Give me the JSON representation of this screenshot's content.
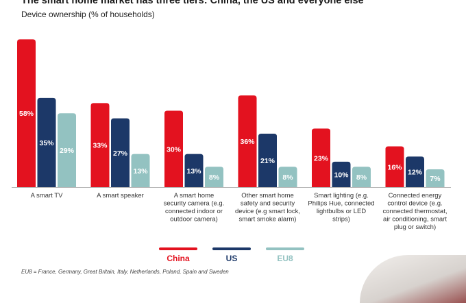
{
  "colors": {
    "China": "#e3121f",
    "US": "#1c3868",
    "EU8": "#93c2c1",
    "baseline": "#b8b8b8",
    "label": "#ffffff",
    "category_text": "#333333"
  },
  "chart_data": {
    "type": "bar",
    "title": "The smart home market has three tiers: China, the US and everyone else",
    "subtitle": "Device ownership (% of households)",
    "categories": [
      "A smart TV",
      "A smart speaker",
      "A smart home security camera (e.g. connected indoor or outdoor camera)",
      "Other smart home safety and security device (e.g smart lock, smart smoke alarm)",
      "Smart lighting (e.g. Philips Hue, connected lightbulbs or LED strips)",
      "Connected energy control device (e.g. connected thermostat, air conditioning, smart plug or switch)"
    ],
    "category_lines": [
      [
        "A smart TV"
      ],
      [
        "A smart speaker"
      ],
      [
        "A smart home",
        "security camera (e.g.",
        "connected indoor or",
        "outdoor camera)"
      ],
      [
        "Other smart home",
        "safety and security",
        "device (e.g smart lock,",
        "smart smoke alarm)"
      ],
      [
        "Smart lighting (e.g.",
        "Philips Hue, connected",
        "lightbulbs or LED",
        "strips)"
      ],
      [
        "Connected energy",
        "control device (e.g.",
        "connected thermostat,",
        "air conditioning, smart",
        "plug or switch)"
      ]
    ],
    "series": [
      {
        "name": "China",
        "values": [
          58,
          33,
          30,
          36,
          23,
          16
        ],
        "labels": [
          "58%",
          "33%",
          "30%",
          "36%",
          "23%",
          "16%"
        ]
      },
      {
        "name": "US",
        "values": [
          35,
          27,
          13,
          21,
          10,
          12
        ],
        "labels": [
          "35%",
          "27%",
          "13%",
          "21%",
          "10%",
          "12%"
        ]
      },
      {
        "name": "EU8",
        "values": [
          29,
          13,
          8,
          8,
          8,
          7
        ],
        "labels": [
          "29%",
          "13%",
          "8%",
          "8%",
          "8%",
          "7%"
        ]
      }
    ],
    "ylim": [
      0,
      60
    ],
    "xlabel": "",
    "ylabel": "",
    "grid": false,
    "legend_position": "bottom",
    "footnote": "EU8 = France, Germany, Great Britain, Italy, Netherlands, Poland, Spain and Sweden"
  }
}
